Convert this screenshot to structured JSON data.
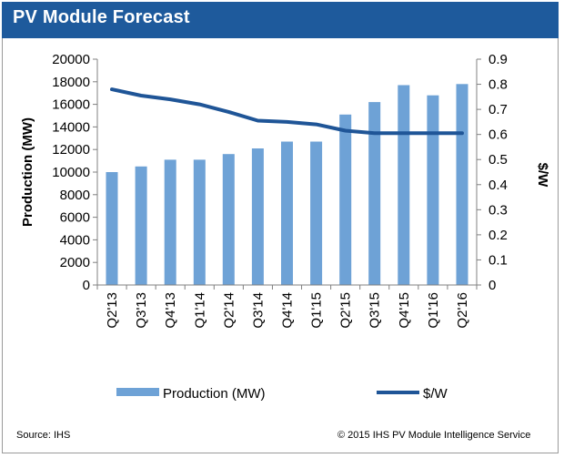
{
  "title": "PV Module Forecast",
  "footer": {
    "source": "Source: IHS",
    "copyright": "© 2015 IHS  PV Module Intelligence Service"
  },
  "colors": {
    "header": "#1e5a9c",
    "bar": "#6ea2d6",
    "line": "#1f5597"
  },
  "chart_data": {
    "type": "bar+line",
    "categories": [
      "Q2'13",
      "Q3'13",
      "Q4'13",
      "Q1'14",
      "Q2'14",
      "Q3'14",
      "Q4'14",
      "Q1'15",
      "Q2'15",
      "Q3'15",
      "Q4'15",
      "Q1'16",
      "Q2'16"
    ],
    "series": [
      {
        "name": "Production (MW)",
        "type": "bar",
        "axis": "left",
        "values": [
          10000,
          10500,
          11100,
          11100,
          11600,
          12100,
          12700,
          12700,
          15100,
          16200,
          17700,
          16800,
          17800
        ]
      },
      {
        "name": "$/W",
        "type": "line",
        "axis": "right",
        "values": [
          0.78,
          0.755,
          0.74,
          0.72,
          0.69,
          0.655,
          0.65,
          0.64,
          0.615,
          0.605,
          0.605,
          0.605,
          0.605
        ]
      }
    ],
    "ylabel": "Production (MW)",
    "y2label": "$/W",
    "ylim": [
      0,
      20000
    ],
    "y2lim": [
      0,
      0.9
    ],
    "yticks": [
      "0",
      "2000",
      "4000",
      "6000",
      "8000",
      "10000",
      "12000",
      "14000",
      "16000",
      "18000",
      "20000"
    ],
    "y2ticks": [
      "0",
      "0.1",
      "0.2",
      "0.3",
      "0.4",
      "0.5",
      "0.6",
      "0.7",
      "0.8",
      "0.9"
    ],
    "grid": false,
    "legend": "bottom"
  }
}
